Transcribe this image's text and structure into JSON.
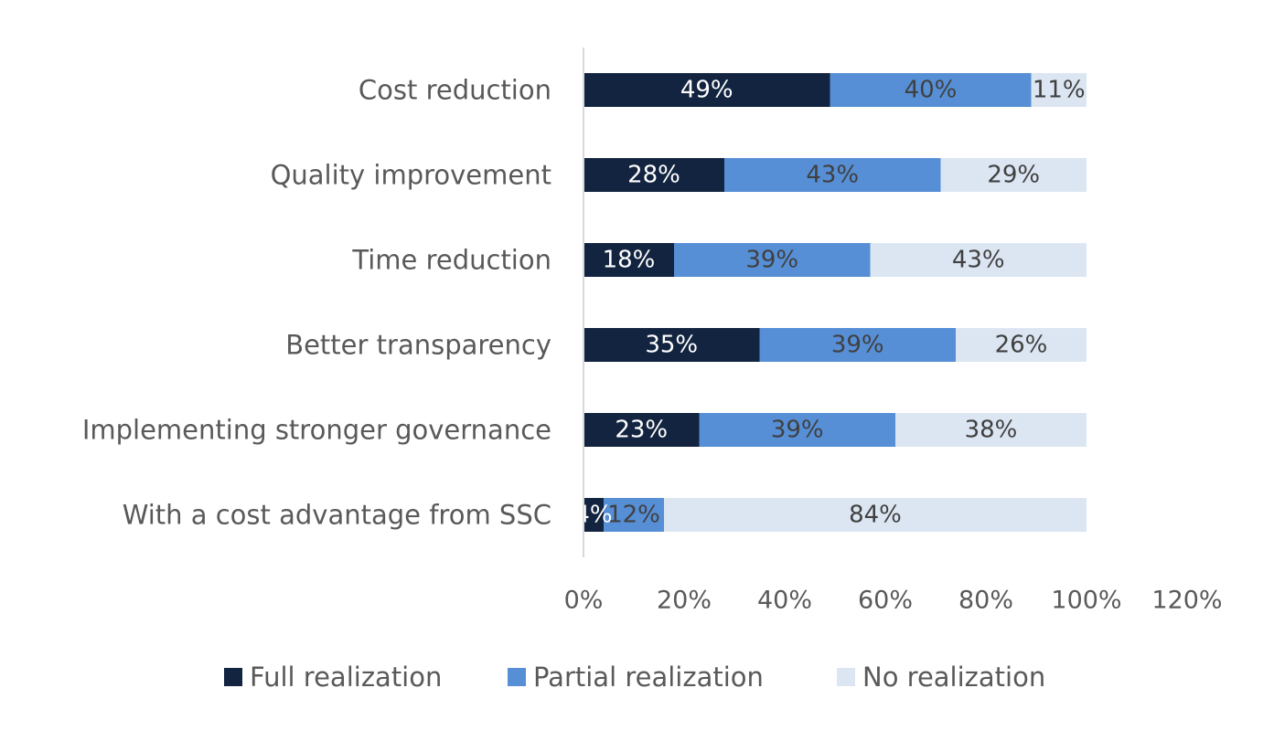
{
  "chart_data": {
    "type": "bar",
    "orientation": "horizontal",
    "stacked": true,
    "categories": [
      "Cost reduction",
      "Quality improvement",
      "Time reduction",
      "Better transparency",
      "Implementing stronger governance",
      "With a cost advantage from SSC"
    ],
    "series": [
      {
        "name": "Full realization",
        "color": "#12243f",
        "label_color": "#ffffff",
        "values": [
          49,
          28,
          18,
          35,
          23,
          4
        ],
        "labels": [
          "49%",
          "28%",
          "18%",
          "35%",
          "23%",
          "4%"
        ]
      },
      {
        "name": "Partial realization",
        "color": "#568fd6",
        "label_color": "#404040",
        "values": [
          40,
          43,
          39,
          39,
          39,
          12
        ],
        "labels": [
          "40%",
          "43%",
          "39%",
          "39%",
          "39%",
          "12%"
        ]
      },
      {
        "name": "No realization",
        "color": "#dce6f2",
        "label_color": "#404040",
        "values": [
          11,
          29,
          43,
          26,
          38,
          84
        ],
        "labels": [
          "11%",
          "29%",
          "43%",
          "26%",
          "38%",
          "84%"
        ]
      }
    ],
    "xlim": [
      0,
      120
    ],
    "xticks": [
      0,
      20,
      40,
      60,
      80,
      100,
      120
    ],
    "xtick_labels": [
      "0%",
      "20%",
      "40%",
      "60%",
      "80%",
      "100%",
      "120%"
    ],
    "grid": false,
    "legend": "bottom",
    "title": "",
    "xlabel": "",
    "ylabel": ""
  }
}
